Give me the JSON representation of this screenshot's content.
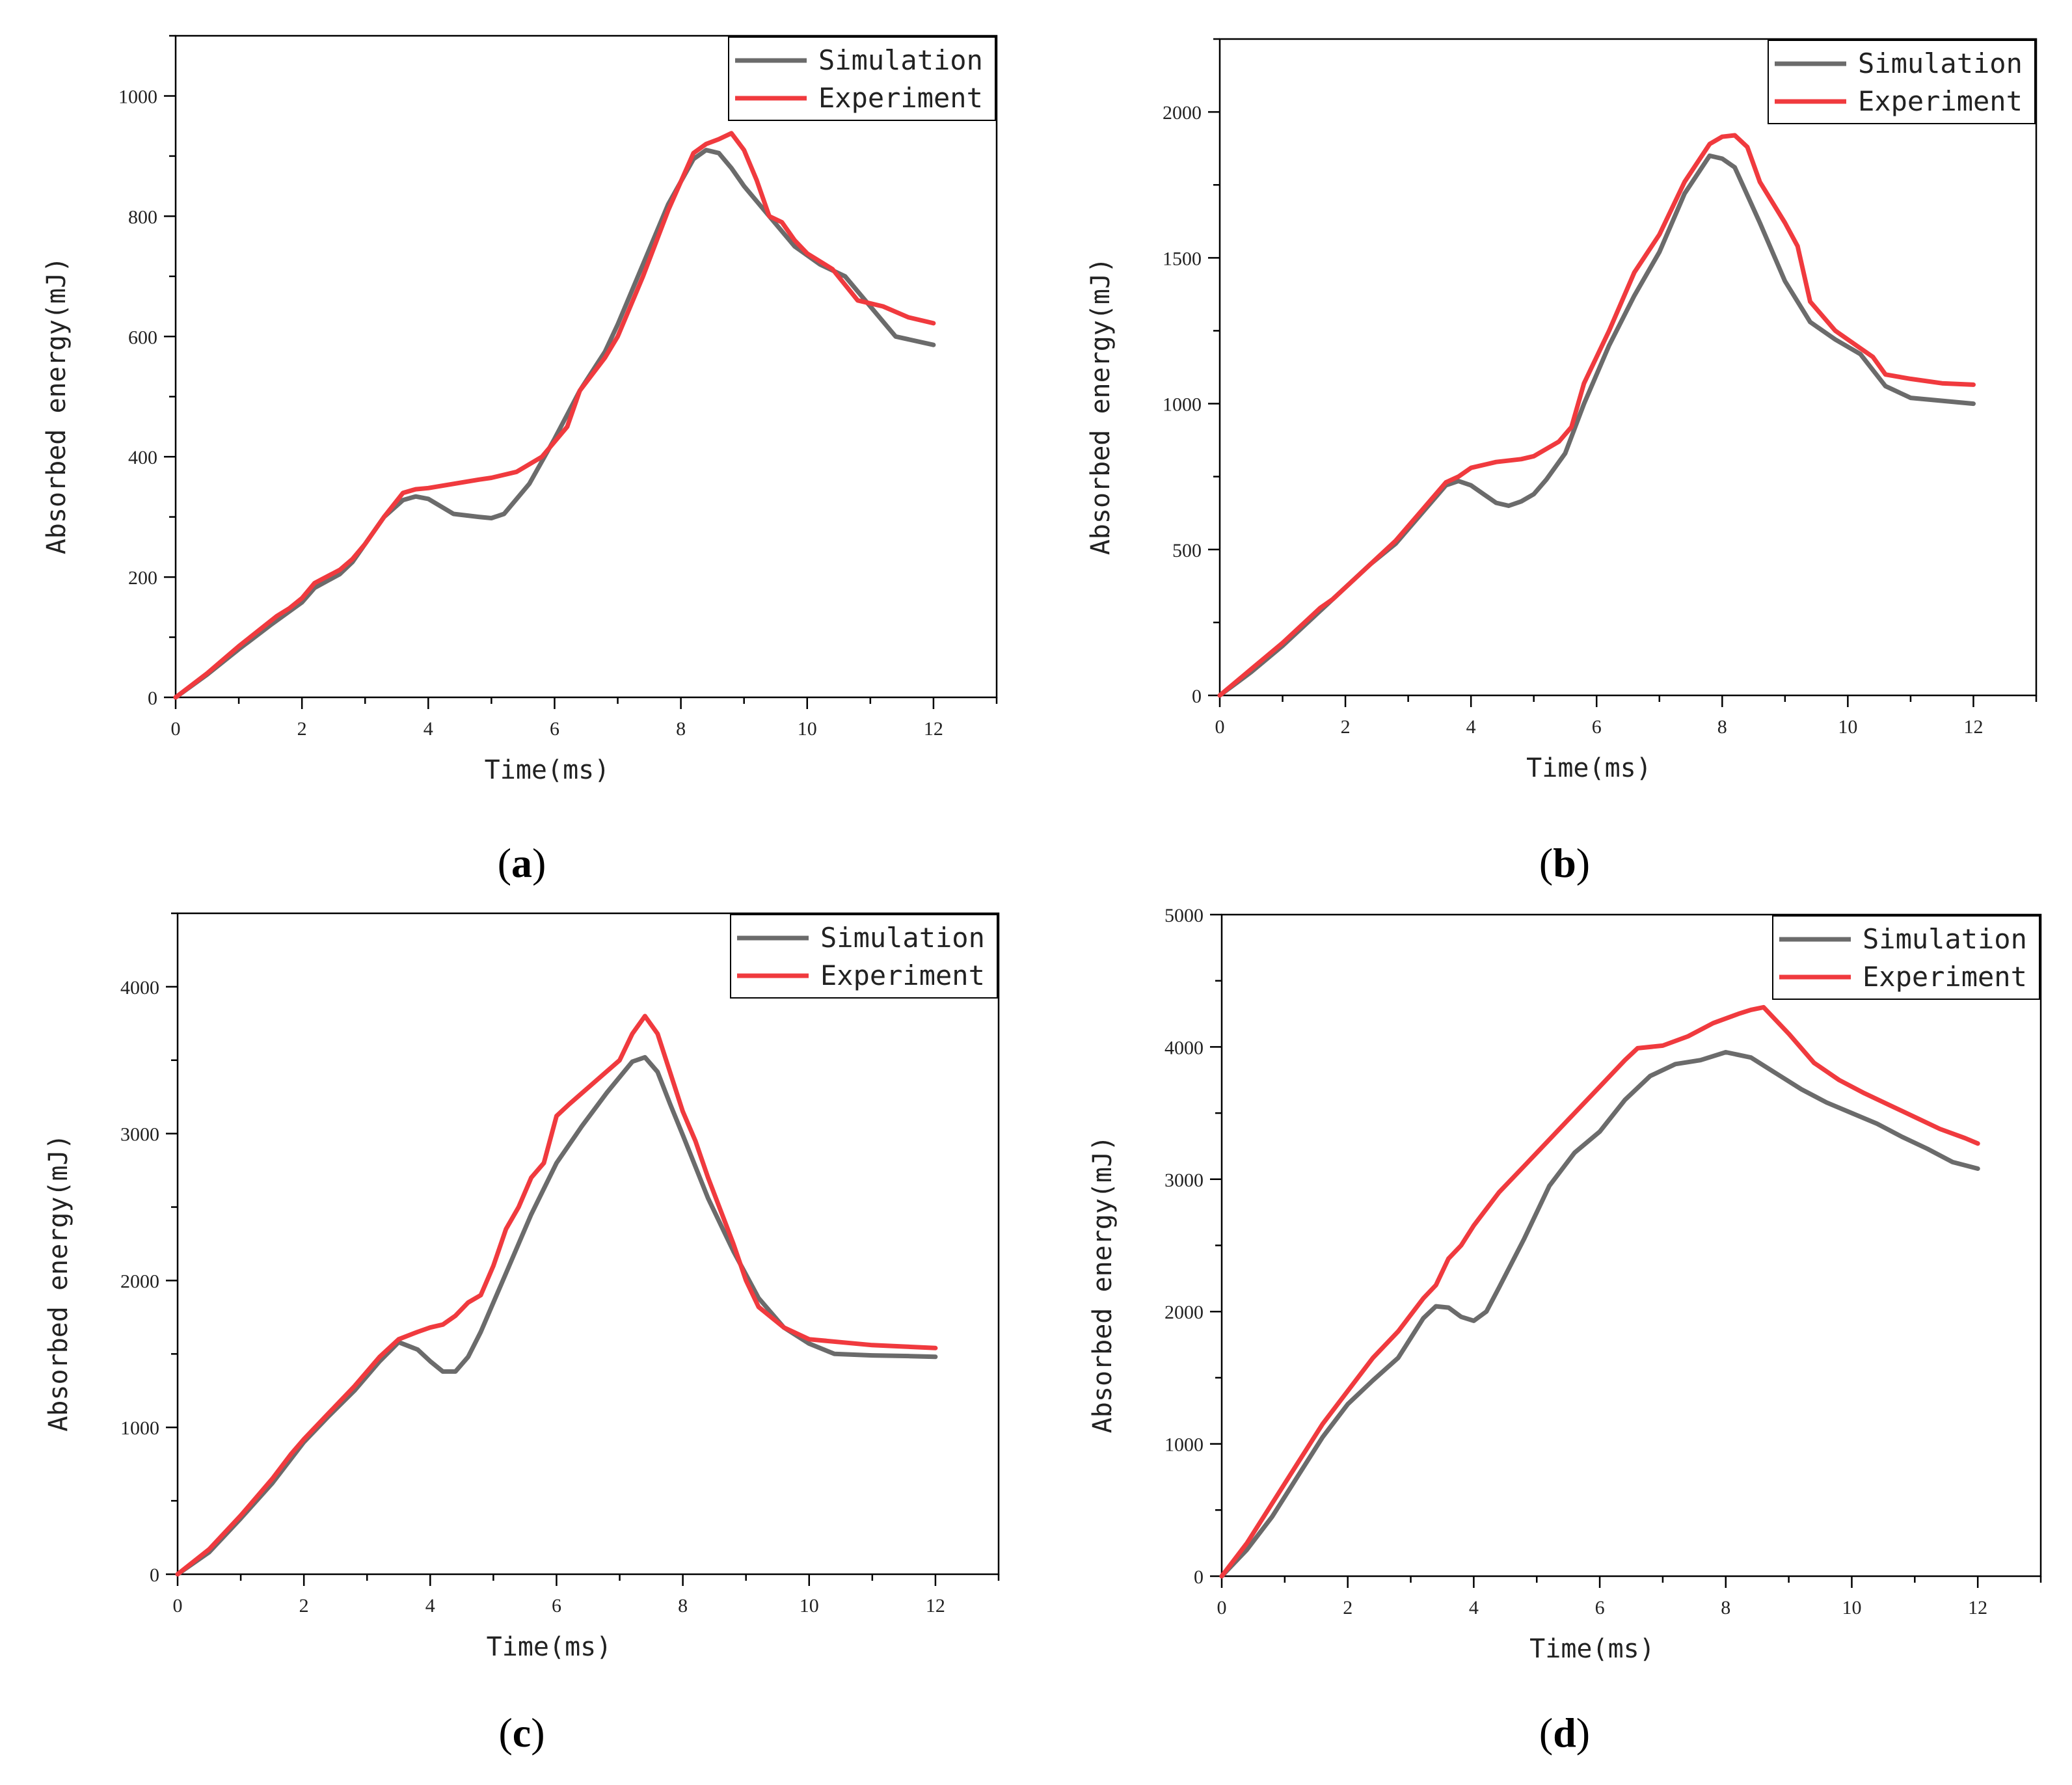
{
  "colors": {
    "simulation": "#6b6b6b",
    "experiment": "#f03a3e",
    "axis": "#000000"
  },
  "chart_data": [
    {
      "type": "line",
      "panel_label": "(a)",
      "panel_letter": "a",
      "xlabel": "Time(ms)",
      "ylabel": "Absorbed energy(mJ)",
      "xlim": [
        0,
        13
      ],
      "ylim": [
        0,
        1100
      ],
      "xticks": [
        0,
        2,
        4,
        6,
        8,
        10,
        12
      ],
      "yticks": [
        0,
        200,
        400,
        600,
        800,
        1000
      ],
      "legend": "top-right",
      "series": [
        {
          "name": "Simulation",
          "x": [
            0,
            0.5,
            1,
            1.5,
            2,
            2.2,
            2.6,
            2.8,
            3,
            3.3,
            3.6,
            3.8,
            4,
            4.4,
            4.8,
            5,
            5.2,
            5.6,
            6,
            6.4,
            6.8,
            7,
            7.4,
            7.8,
            8.2,
            8.4,
            8.6,
            8.8,
            9,
            9.4,
            9.8,
            10.2,
            10.6,
            11,
            11.4,
            12
          ],
          "y": [
            0,
            38,
            80,
            120,
            158,
            182,
            205,
            225,
            255,
            300,
            328,
            334,
            330,
            305,
            300,
            298,
            305,
            355,
            430,
            510,
            575,
            620,
            720,
            820,
            895,
            910,
            905,
            880,
            850,
            800,
            750,
            720,
            700,
            650,
            600,
            586
          ]
        },
        {
          "name": "Experiment",
          "x": [
            0,
            0.5,
            1,
            1.6,
            1.8,
            2,
            2.2,
            2.6,
            2.8,
            3,
            3.3,
            3.6,
            3.8,
            4,
            4.4,
            4.8,
            5,
            5.4,
            5.8,
            6.2,
            6.4,
            6.8,
            7,
            7.4,
            7.8,
            8.2,
            8.4,
            8.6,
            8.8,
            9,
            9.2,
            9.4,
            9.6,
            9.8,
            10,
            10.4,
            10.8,
            11.2,
            11.6,
            12
          ],
          "y": [
            0,
            40,
            85,
            135,
            148,
            165,
            190,
            212,
            230,
            255,
            300,
            340,
            346,
            348,
            355,
            362,
            365,
            375,
            400,
            450,
            510,
            565,
            600,
            700,
            810,
            905,
            920,
            928,
            938,
            910,
            860,
            800,
            790,
            760,
            738,
            712,
            660,
            650,
            632,
            622
          ]
        }
      ]
    },
    {
      "type": "line",
      "panel_label": "(b)",
      "panel_letter": "b",
      "xlabel": "Time(ms)",
      "ylabel": "Absorbed energy(mJ)",
      "xlim": [
        0,
        13
      ],
      "ylim": [
        0,
        2250
      ],
      "xticks": [
        0,
        2,
        4,
        6,
        8,
        10,
        12
      ],
      "yticks": [
        0,
        500,
        1000,
        1500,
        2000
      ],
      "legend": "top-right",
      "series": [
        {
          "name": "Simulation",
          "x": [
            0,
            0.5,
            1,
            1.5,
            2,
            2.4,
            2.8,
            3.2,
            3.6,
            3.8,
            4,
            4.2,
            4.4,
            4.6,
            4.8,
            5,
            5.2,
            5.5,
            5.8,
            6.2,
            6.6,
            7,
            7.4,
            7.8,
            8,
            8.2,
            8.6,
            9,
            9.4,
            9.8,
            10.2,
            10.6,
            11,
            11.5,
            12
          ],
          "y": [
            0,
            80,
            170,
            270,
            370,
            450,
            520,
            620,
            720,
            735,
            720,
            690,
            660,
            650,
            665,
            690,
            740,
            830,
            1000,
            1200,
            1370,
            1520,
            1720,
            1850,
            1840,
            1810,
            1620,
            1420,
            1280,
            1220,
            1170,
            1060,
            1020,
            1010,
            1000
          ]
        },
        {
          "name": "Experiment",
          "x": [
            0,
            0.5,
            1,
            1.6,
            1.8,
            2,
            2.4,
            2.8,
            3.2,
            3.6,
            3.8,
            4,
            4.4,
            4.8,
            5,
            5.4,
            5.6,
            5.8,
            6.2,
            6.6,
            7,
            7.4,
            7.8,
            8,
            8.2,
            8.4,
            8.6,
            9,
            9.2,
            9.4,
            9.8,
            10.2,
            10.4,
            10.6,
            11,
            11.5,
            12
          ],
          "y": [
            0,
            90,
            180,
            300,
            330,
            370,
            450,
            530,
            630,
            730,
            750,
            780,
            800,
            810,
            820,
            870,
            920,
            1070,
            1250,
            1450,
            1580,
            1760,
            1890,
            1915,
            1920,
            1880,
            1760,
            1620,
            1540,
            1350,
            1250,
            1190,
            1160,
            1100,
            1085,
            1070,
            1065
          ]
        }
      ]
    },
    {
      "type": "line",
      "panel_label": "(c)",
      "panel_letter": "c",
      "xlabel": "Time(ms)",
      "ylabel": "Absorbed energy(mJ)",
      "xlim": [
        0,
        13
      ],
      "ylim": [
        0,
        4500
      ],
      "xticks": [
        0,
        2,
        4,
        6,
        8,
        10,
        12
      ],
      "yticks": [
        0,
        1000,
        2000,
        3000,
        4000
      ],
      "legend": "top-right",
      "series": [
        {
          "name": "Simulation",
          "x": [
            0,
            0.5,
            1,
            1.5,
            2,
            2.4,
            2.8,
            3.2,
            3.5,
            3.8,
            4,
            4.2,
            4.4,
            4.6,
            4.8,
            5.2,
            5.6,
            6,
            6.4,
            6.8,
            7.2,
            7.4,
            7.6,
            7.8,
            8,
            8.4,
            8.8,
            9.2,
            9.6,
            10,
            10.4,
            11,
            11.6,
            12
          ],
          "y": [
            0,
            150,
            380,
            620,
            900,
            1080,
            1250,
            1450,
            1580,
            1530,
            1450,
            1380,
            1380,
            1480,
            1650,
            2050,
            2450,
            2800,
            3050,
            3280,
            3490,
            3520,
            3420,
            3200,
            2990,
            2560,
            2200,
            1880,
            1680,
            1570,
            1500,
            1490,
            1485,
            1480
          ]
        },
        {
          "name": "Experiment",
          "x": [
            0,
            0.5,
            1,
            1.5,
            1.8,
            2,
            2.4,
            2.8,
            3.2,
            3.5,
            3.8,
            4,
            4.2,
            4.4,
            4.6,
            4.8,
            5,
            5.2,
            5.4,
            5.6,
            5.8,
            6,
            6.2,
            6.6,
            7,
            7.2,
            7.4,
            7.6,
            8,
            8.2,
            8.4,
            8.8,
            9,
            9.2,
            9.6,
            10,
            10.5,
            11,
            11.5,
            12
          ],
          "y": [
            0,
            170,
            400,
            650,
            820,
            920,
            1100,
            1280,
            1480,
            1600,
            1650,
            1680,
            1700,
            1760,
            1850,
            1900,
            2100,
            2350,
            2500,
            2700,
            2800,
            3120,
            3200,
            3350,
            3500,
            3680,
            3800,
            3680,
            3150,
            2950,
            2700,
            2250,
            2000,
            1820,
            1680,
            1600,
            1580,
            1560,
            1550,
            1540
          ]
        }
      ]
    },
    {
      "type": "line",
      "panel_label": "(d)",
      "panel_letter": "d",
      "xlabel": "Time(ms)",
      "ylabel": "Absorbed energy(mJ)",
      "xlim": [
        0,
        13
      ],
      "ylim": [
        0,
        5000
      ],
      "xticks": [
        0,
        2,
        4,
        6,
        8,
        10,
        12
      ],
      "yticks": [
        0,
        1000,
        2000,
        3000,
        4000,
        5000
      ],
      "legend": "top-right",
      "series": [
        {
          "name": "Simulation",
          "x": [
            0,
            0.4,
            0.8,
            1.2,
            1.6,
            2,
            2.4,
            2.8,
            3.2,
            3.4,
            3.6,
            3.8,
            4,
            4.2,
            4.4,
            4.8,
            5.2,
            5.6,
            6,
            6.4,
            6.8,
            7.2,
            7.6,
            8,
            8.4,
            8.8,
            9.2,
            9.6,
            10,
            10.4,
            10.8,
            11.2,
            11.6,
            12
          ],
          "y": [
            0,
            200,
            450,
            750,
            1050,
            1300,
            1480,
            1650,
            1950,
            2040,
            2030,
            1960,
            1930,
            2000,
            2180,
            2550,
            2950,
            3200,
            3360,
            3600,
            3780,
            3870,
            3900,
            3960,
            3920,
            3800,
            3680,
            3580,
            3500,
            3420,
            3320,
            3230,
            3130,
            3080
          ]
        },
        {
          "name": "Experiment",
          "x": [
            0,
            0.4,
            0.8,
            1.2,
            1.6,
            2,
            2.4,
            2.8,
            3.2,
            3.4,
            3.6,
            3.8,
            4,
            4.4,
            4.8,
            5.2,
            5.6,
            6,
            6.4,
            6.6,
            7,
            7.4,
            7.8,
            8.2,
            8.4,
            8.6,
            9,
            9.4,
            9.8,
            10.2,
            10.6,
            11,
            11.4,
            11.8,
            12
          ],
          "y": [
            0,
            250,
            550,
            850,
            1150,
            1400,
            1650,
            1850,
            2100,
            2200,
            2400,
            2500,
            2650,
            2900,
            3100,
            3300,
            3500,
            3700,
            3900,
            3990,
            4010,
            4080,
            4180,
            4250,
            4280,
            4300,
            4100,
            3880,
            3750,
            3650,
            3560,
            3470,
            3380,
            3310,
            3270
          ]
        }
      ]
    }
  ]
}
